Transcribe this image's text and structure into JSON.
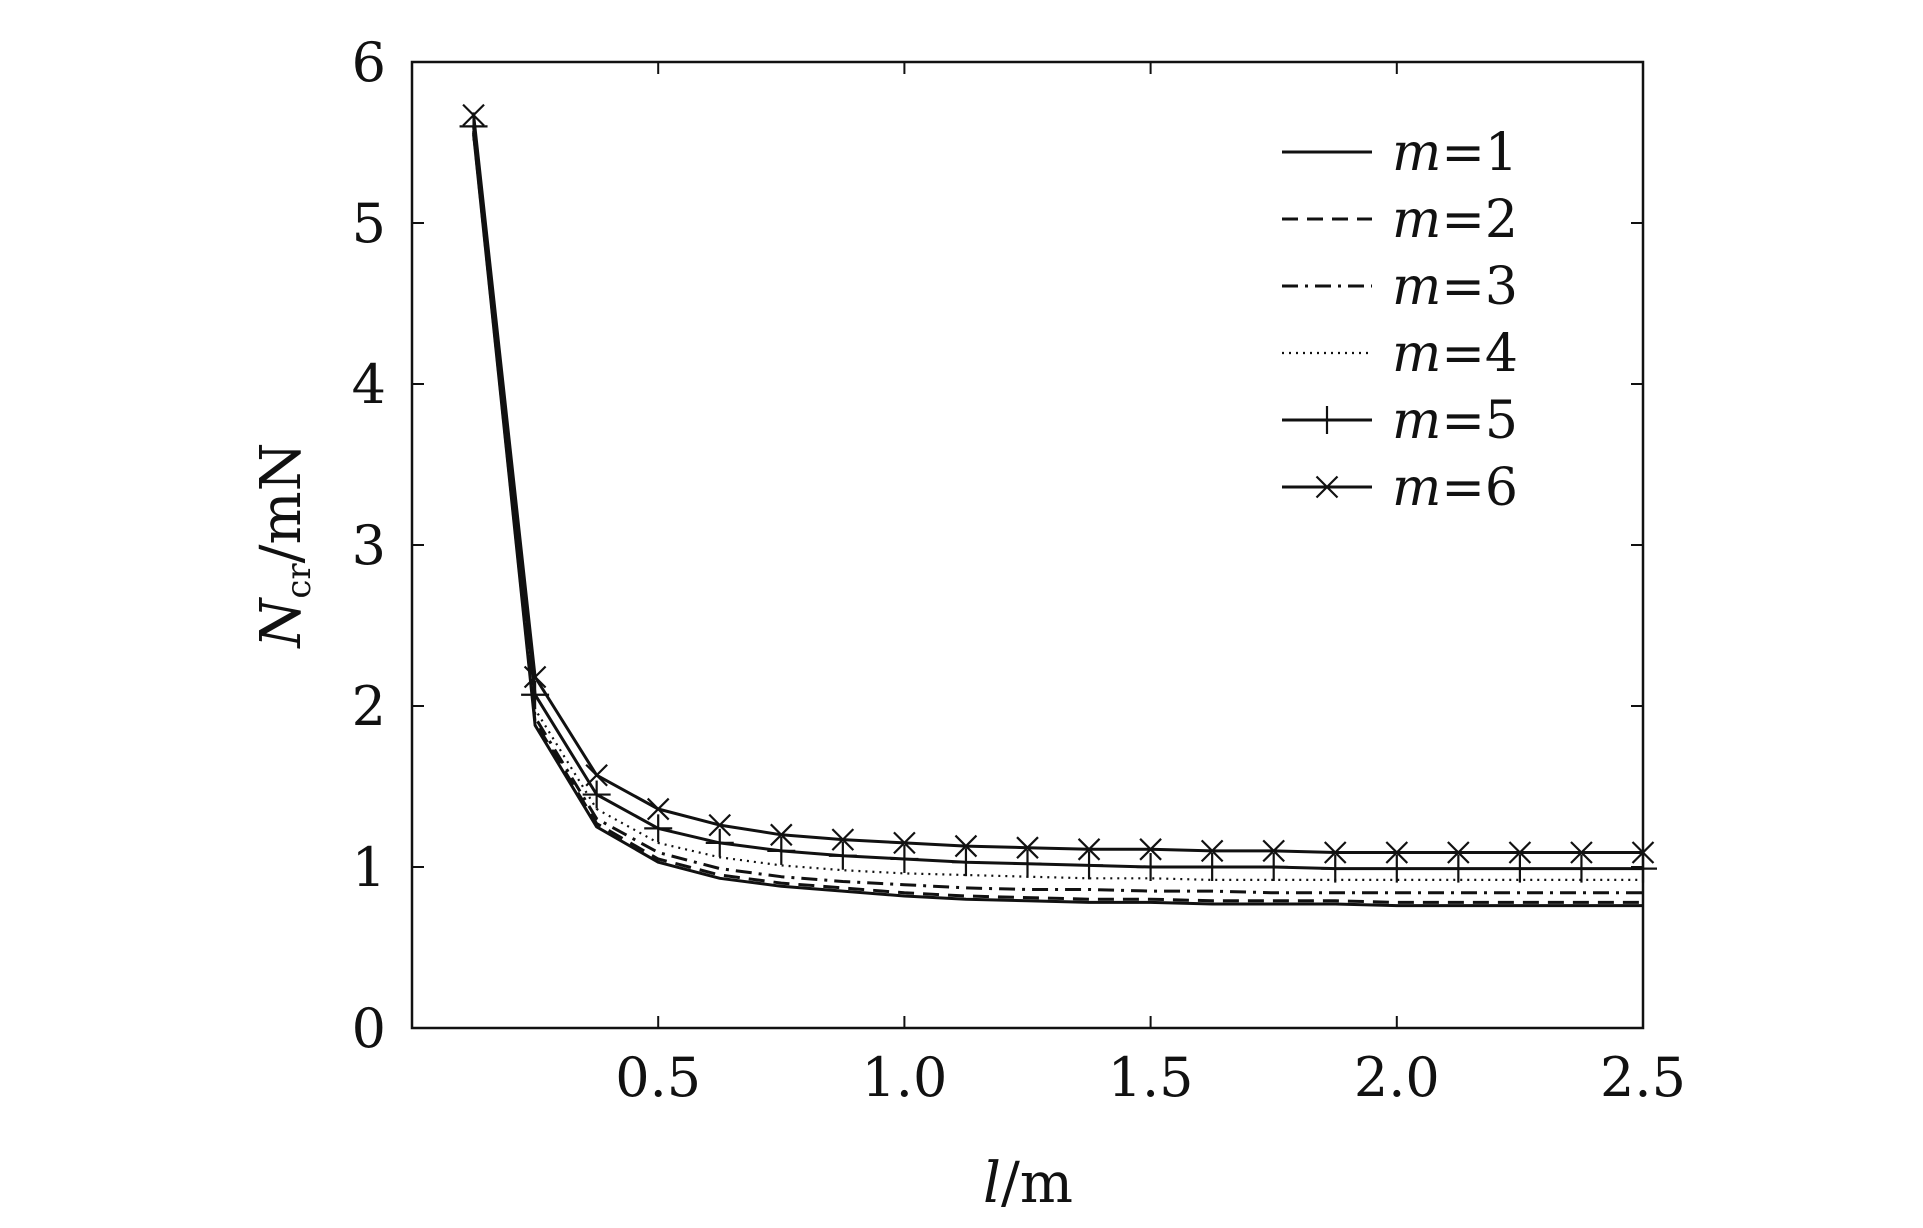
{
  "chart_data": {
    "type": "line",
    "xlabel": {
      "var": "l",
      "unit": "/m"
    },
    "ylabel": {
      "var": "N",
      "sub": "cr",
      "unit": "/mN"
    },
    "xlim": [
      0,
      2.5
    ],
    "ylim": [
      0,
      6
    ],
    "x_ticks": [
      0.5,
      1.0,
      1.5,
      2.0,
      2.5
    ],
    "x_tick_labels": [
      "0.5",
      "1.0",
      "1.5",
      "2.0",
      "2.5"
    ],
    "y_ticks": [
      0,
      1,
      2,
      3,
      4,
      5,
      6
    ],
    "y_tick_labels": [
      "0",
      "1",
      "2",
      "3",
      "4",
      "5",
      "6"
    ],
    "grid": false,
    "legend_position": "top-right",
    "x": [
      0.125,
      0.25,
      0.375,
      0.5,
      0.625,
      0.75,
      0.875,
      1.0,
      1.125,
      1.25,
      1.375,
      1.5,
      1.625,
      1.75,
      1.875,
      2.0,
      2.125,
      2.25,
      2.375,
      2.5
    ],
    "series": [
      {
        "name": "m=1",
        "style": "solid",
        "marker": "none",
        "values": [
          5.55,
          1.88,
          1.25,
          1.03,
          0.93,
          0.88,
          0.85,
          0.82,
          0.8,
          0.79,
          0.78,
          0.78,
          0.77,
          0.77,
          0.77,
          0.76,
          0.76,
          0.76,
          0.76,
          0.76
        ]
      },
      {
        "name": "m=2",
        "style": "dashed",
        "marker": "none",
        "values": [
          5.56,
          1.9,
          1.27,
          1.05,
          0.95,
          0.9,
          0.87,
          0.84,
          0.82,
          0.81,
          0.8,
          0.8,
          0.79,
          0.79,
          0.79,
          0.78,
          0.78,
          0.78,
          0.78,
          0.78
        ]
      },
      {
        "name": "m=3",
        "style": "dashdot",
        "marker": "none",
        "values": [
          5.57,
          1.93,
          1.3,
          1.09,
          0.99,
          0.94,
          0.91,
          0.89,
          0.87,
          0.86,
          0.86,
          0.85,
          0.85,
          0.84,
          0.84,
          0.84,
          0.84,
          0.84,
          0.84,
          0.84
        ]
      },
      {
        "name": "m=4",
        "style": "dotted",
        "marker": "none",
        "values": [
          5.58,
          1.98,
          1.36,
          1.15,
          1.06,
          1.01,
          0.98,
          0.96,
          0.95,
          0.94,
          0.93,
          0.93,
          0.92,
          0.92,
          0.92,
          0.92,
          0.92,
          0.92,
          0.92,
          0.92
        ]
      },
      {
        "name": "m=5",
        "style": "solid",
        "marker": "plus",
        "values": [
          5.6,
          2.07,
          1.45,
          1.24,
          1.15,
          1.1,
          1.07,
          1.05,
          1.03,
          1.02,
          1.01,
          1.0,
          1.0,
          1.0,
          0.99,
          0.99,
          0.99,
          0.99,
          0.99,
          0.99
        ]
      },
      {
        "name": "m=6",
        "style": "solid",
        "marker": "x",
        "values": [
          5.67,
          2.18,
          1.57,
          1.36,
          1.26,
          1.2,
          1.17,
          1.15,
          1.13,
          1.12,
          1.11,
          1.11,
          1.1,
          1.1,
          1.09,
          1.09,
          1.09,
          1.09,
          1.09,
          1.09
        ]
      }
    ]
  }
}
